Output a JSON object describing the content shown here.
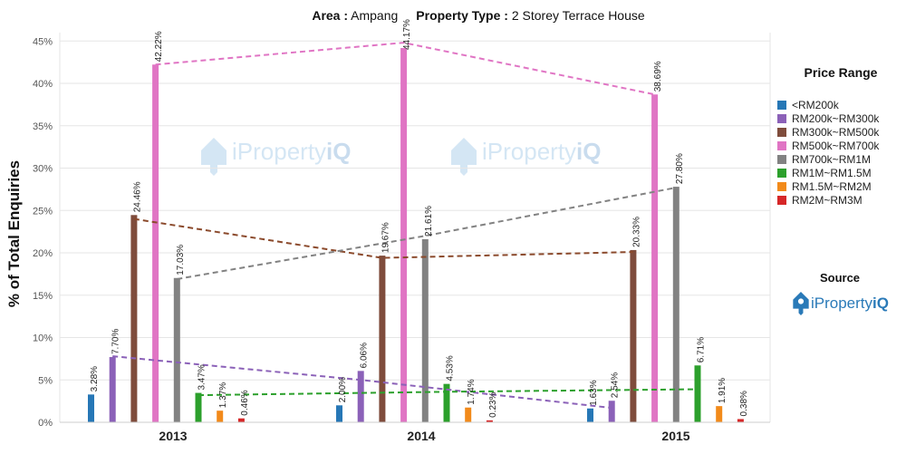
{
  "header": {
    "area_label": "Area :",
    "area_value": "Ampang",
    "type_label": "Property Type :",
    "type_value": "2 Storey Terrace House"
  },
  "legend": {
    "title": "Price Range"
  },
  "source": {
    "title": "Source",
    "brand_prefix": "iProperty",
    "brand_suffix": "iQ"
  },
  "watermark": {
    "prefix": "iProperty",
    "suffix": "iQ"
  },
  "chart_data": {
    "type": "bar",
    "ylabel": "% of Total Enquiries",
    "ylim": [
      0,
      47
    ],
    "yticks": [
      "0%",
      "5%",
      "10%",
      "15%",
      "20%",
      "25%",
      "30%",
      "35%",
      "40%",
      "45%"
    ],
    "ytick_values": [
      0,
      5,
      10,
      15,
      20,
      25,
      30,
      35,
      40,
      45
    ],
    "categories": [
      "2013",
      "2014",
      "2015"
    ],
    "grid": true,
    "legend_position": "right",
    "series": [
      {
        "name": "<RM200k",
        "color": "#2677b6",
        "values": [
          3.28,
          2.0,
          1.63
        ],
        "labels": [
          "3.28%",
          "2.00%",
          "1.63%"
        ]
      },
      {
        "name": "RM200k~RM300k",
        "color": "#8b61b8",
        "values": [
          7.7,
          6.06,
          2.54
        ],
        "labels": [
          "7.70%",
          "6.06%",
          "2.54%"
        ]
      },
      {
        "name": "RM300k~RM500k",
        "color": "#7f4c3c",
        "values": [
          24.46,
          19.67,
          20.33
        ],
        "labels": [
          "24.46%",
          "19.67%",
          "20.33%"
        ]
      },
      {
        "name": "RM500k~RM700k",
        "color": "#e075c4",
        "values": [
          42.22,
          44.17,
          38.69
        ],
        "labels": [
          "42.22%",
          "44.17%",
          "38.69%"
        ]
      },
      {
        "name": "RM700k~RM1M",
        "color": "#828282",
        "values": [
          17.03,
          21.61,
          27.8
        ],
        "labels": [
          "17.03%",
          "21.61%",
          "27.80%"
        ]
      },
      {
        "name": "RM1M~RM1.5M",
        "color": "#2ca02c",
        "values": [
          3.47,
          4.53,
          6.71
        ],
        "labels": [
          "3.47%",
          "4.53%",
          "6.71%"
        ]
      },
      {
        "name": "RM1.5M~RM2M",
        "color": "#f28a1a",
        "values": [
          1.37,
          1.74,
          1.91
        ],
        "labels": [
          "1.37%",
          "1.74%",
          "1.91%"
        ]
      },
      {
        "name": "RM2M~RM3M",
        "color": "#d62728",
        "values": [
          0.46,
          0.23,
          0.38
        ],
        "labels": [
          "0.46%",
          "0.23%",
          "0.38%"
        ]
      }
    ],
    "trend_lines": [
      {
        "series": "RM500k~RM700k",
        "color": "#e075c4",
        "values": [
          42.22,
          44.8,
          38.69
        ]
      },
      {
        "series": "RM300k~RM500k",
        "color": "#8b4a2c",
        "values": [
          24.0,
          19.4,
          20.1
        ]
      },
      {
        "series": "RM700k~RM1M",
        "color": "#828282",
        "values": [
          16.9,
          22.0,
          27.7
        ]
      },
      {
        "series": "RM200k~RM300k",
        "color": "#8b61b8",
        "values": [
          7.8,
          5.0,
          1.7
        ]
      },
      {
        "series": "RM1M~RM1.5M",
        "color": "#2ca02c",
        "values": [
          3.2,
          3.6,
          3.9
        ]
      }
    ]
  }
}
